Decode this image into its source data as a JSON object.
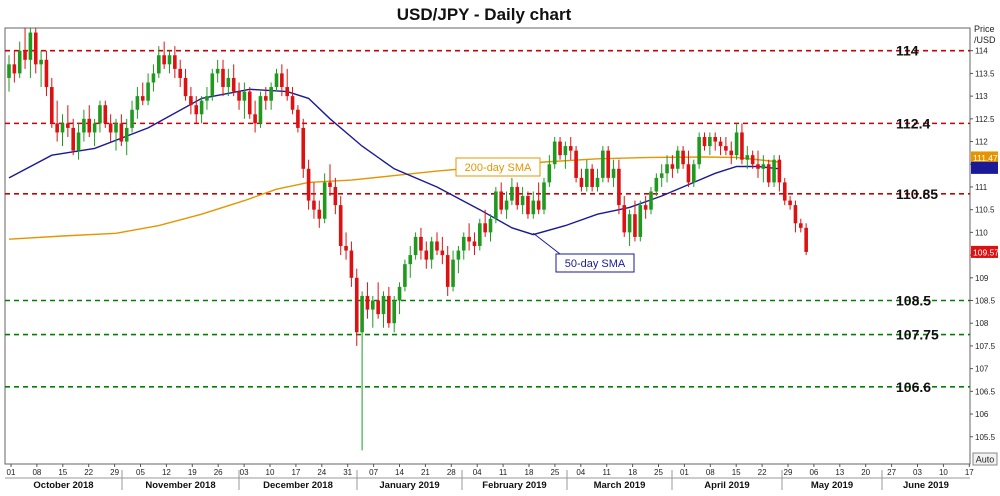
{
  "chart_data": {
    "type": "candlestick",
    "title": "USD/JPY - Daily chart",
    "price_axis_label": [
      "Price",
      "/USD"
    ],
    "ylim": [
      104.9,
      114.5
    ],
    "y_ticks": [
      "105.5",
      "106",
      "106.5",
      "107",
      "107.5",
      "108",
      "108.5",
      "109",
      "109.5",
      "110",
      "110.5",
      "111",
      "111.5",
      "112",
      "112.5",
      "113",
      "113.5",
      "114"
    ],
    "x_day_ticks": [
      "01",
      "08",
      "15",
      "22",
      "29",
      "05",
      "12",
      "19",
      "26",
      "03",
      "10",
      "17",
      "24",
      "31",
      "07",
      "14",
      "21",
      "28",
      "04",
      "11",
      "18",
      "25",
      "04",
      "11",
      "18",
      "25",
      "01",
      "08",
      "15",
      "22",
      "29",
      "06",
      "13",
      "20",
      "27",
      "03",
      "10",
      "17"
    ],
    "x_month_labels": [
      "October 2018",
      "November 2018",
      "December 2018",
      "January 2019",
      "February 2019",
      "March 2019",
      "April 2019",
      "May 2019",
      "June 2019"
    ],
    "auto_label": "Auto",
    "levels": [
      {
        "value": 114,
        "label": "114",
        "color": "#cc0000"
      },
      {
        "value": 112.4,
        "label": "112.4",
        "color": "#cc0000"
      },
      {
        "value": 110.85,
        "label": "110.85",
        "color": "#cc0000"
      },
      {
        "value": 108.5,
        "label": "108.5",
        "color": "#008000"
      },
      {
        "value": 107.75,
        "label": "107.75",
        "color": "#008000"
      },
      {
        "value": 106.6,
        "label": "106.6",
        "color": "#008000"
      }
    ],
    "sma_labels": [
      {
        "text": "200-day SMA",
        "color": "#e69500"
      },
      {
        "text": "50-day SMA",
        "color": "#1a1a99"
      }
    ],
    "price_badges": [
      {
        "text": "111.47",
        "bg": "#e69500"
      },
      {
        "text": "",
        "bg": "#1a1a99"
      },
      {
        "text": "109.57",
        "bg": "#dd1111"
      }
    ],
    "candles": [
      {
        "o": 113.4,
        "h": 113.9,
        "l": 113.1,
        "c": 113.7
      },
      {
        "o": 113.7,
        "h": 114.0,
        "l": 113.3,
        "c": 113.5
      },
      {
        "o": 113.5,
        "h": 114.2,
        "l": 113.4,
        "c": 114.0
      },
      {
        "o": 114.0,
        "h": 114.5,
        "l": 113.6,
        "c": 113.8
      },
      {
        "o": 113.8,
        "h": 114.5,
        "l": 113.4,
        "c": 114.4
      },
      {
        "o": 114.4,
        "h": 114.5,
        "l": 113.5,
        "c": 113.7
      },
      {
        "o": 113.7,
        "h": 114.0,
        "l": 113.2,
        "c": 113.8
      },
      {
        "o": 113.8,
        "h": 114.0,
        "l": 113.0,
        "c": 113.2
      },
      {
        "o": 113.2,
        "h": 113.4,
        "l": 112.3,
        "c": 112.4
      },
      {
        "o": 112.4,
        "h": 112.9,
        "l": 112.0,
        "c": 112.2
      },
      {
        "o": 112.2,
        "h": 112.6,
        "l": 111.9,
        "c": 112.4
      },
      {
        "o": 112.4,
        "h": 112.8,
        "l": 112.1,
        "c": 112.3
      },
      {
        "o": 112.3,
        "h": 112.5,
        "l": 111.7,
        "c": 111.8
      },
      {
        "o": 111.8,
        "h": 112.4,
        "l": 111.6,
        "c": 112.2
      },
      {
        "o": 112.2,
        "h": 112.7,
        "l": 112.0,
        "c": 112.5
      },
      {
        "o": 112.5,
        "h": 112.8,
        "l": 112.1,
        "c": 112.2
      },
      {
        "o": 112.2,
        "h": 112.5,
        "l": 111.9,
        "c": 112.4
      },
      {
        "o": 112.4,
        "h": 112.9,
        "l": 112.2,
        "c": 112.8
      },
      {
        "o": 112.8,
        "h": 112.9,
        "l": 112.3,
        "c": 112.4
      },
      {
        "o": 112.4,
        "h": 112.6,
        "l": 112.0,
        "c": 112.2
      },
      {
        "o": 112.2,
        "h": 112.5,
        "l": 111.8,
        "c": 112.4
      },
      {
        "o": 112.4,
        "h": 112.6,
        "l": 111.9,
        "c": 112.0
      },
      {
        "o": 112.0,
        "h": 112.5,
        "l": 111.7,
        "c": 112.3
      },
      {
        "o": 112.3,
        "h": 112.9,
        "l": 112.2,
        "c": 112.7
      },
      {
        "o": 112.7,
        "h": 113.2,
        "l": 112.5,
        "c": 113.0
      },
      {
        "o": 113.0,
        "h": 113.3,
        "l": 112.8,
        "c": 112.9
      },
      {
        "o": 112.9,
        "h": 113.5,
        "l": 112.8,
        "c": 113.3
      },
      {
        "o": 113.3,
        "h": 113.7,
        "l": 113.1,
        "c": 113.5
      },
      {
        "o": 113.5,
        "h": 114.1,
        "l": 113.4,
        "c": 113.9
      },
      {
        "o": 113.9,
        "h": 114.2,
        "l": 113.6,
        "c": 113.7
      },
      {
        "o": 113.7,
        "h": 114.0,
        "l": 113.5,
        "c": 113.9
      },
      {
        "o": 113.9,
        "h": 114.1,
        "l": 113.4,
        "c": 113.6
      },
      {
        "o": 113.6,
        "h": 113.8,
        "l": 113.2,
        "c": 113.4
      },
      {
        "o": 113.4,
        "h": 113.6,
        "l": 112.9,
        "c": 113.0
      },
      {
        "o": 113.0,
        "h": 113.2,
        "l": 112.6,
        "c": 112.8
      },
      {
        "o": 112.8,
        "h": 113.0,
        "l": 112.4,
        "c": 112.6
      },
      {
        "o": 112.6,
        "h": 113.0,
        "l": 112.4,
        "c": 112.9
      },
      {
        "o": 112.9,
        "h": 113.2,
        "l": 112.7,
        "c": 113.0
      },
      {
        "o": 113.0,
        "h": 113.6,
        "l": 112.9,
        "c": 113.5
      },
      {
        "o": 113.5,
        "h": 113.8,
        "l": 113.3,
        "c": 113.6
      },
      {
        "o": 113.6,
        "h": 113.8,
        "l": 113.0,
        "c": 113.2
      },
      {
        "o": 113.2,
        "h": 113.6,
        "l": 113.0,
        "c": 113.4
      },
      {
        "o": 113.4,
        "h": 113.7,
        "l": 113.0,
        "c": 113.1
      },
      {
        "o": 113.1,
        "h": 113.3,
        "l": 112.7,
        "c": 112.9
      },
      {
        "o": 112.9,
        "h": 113.3,
        "l": 112.5,
        "c": 113.1
      },
      {
        "o": 113.1,
        "h": 113.2,
        "l": 112.5,
        "c": 112.6
      },
      {
        "o": 112.6,
        "h": 112.9,
        "l": 112.2,
        "c": 112.4
      },
      {
        "o": 112.4,
        "h": 113.1,
        "l": 112.3,
        "c": 113.0
      },
      {
        "o": 113.0,
        "h": 113.2,
        "l": 112.7,
        "c": 112.9
      },
      {
        "o": 112.9,
        "h": 113.3,
        "l": 112.7,
        "c": 113.2
      },
      {
        "o": 113.2,
        "h": 113.6,
        "l": 113.1,
        "c": 113.5
      },
      {
        "o": 113.5,
        "h": 113.7,
        "l": 113.0,
        "c": 113.2
      },
      {
        "o": 113.2,
        "h": 113.6,
        "l": 112.9,
        "c": 113.0
      },
      {
        "o": 113.0,
        "h": 113.2,
        "l": 112.6,
        "c": 112.7
      },
      {
        "o": 112.7,
        "h": 112.8,
        "l": 112.2,
        "c": 112.3
      },
      {
        "o": 112.3,
        "h": 112.5,
        "l": 111.2,
        "c": 111.4
      },
      {
        "o": 111.4,
        "h": 111.6,
        "l": 110.5,
        "c": 110.7
      },
      {
        "o": 110.7,
        "h": 111.1,
        "l": 110.3,
        "c": 110.5
      },
      {
        "o": 110.5,
        "h": 110.7,
        "l": 110.1,
        "c": 110.3
      },
      {
        "o": 110.3,
        "h": 111.3,
        "l": 110.2,
        "c": 111.1
      },
      {
        "o": 111.1,
        "h": 111.5,
        "l": 110.8,
        "c": 111.0
      },
      {
        "o": 111.0,
        "h": 111.2,
        "l": 110.4,
        "c": 110.6
      },
      {
        "o": 110.6,
        "h": 110.8,
        "l": 109.5,
        "c": 109.7
      },
      {
        "o": 109.7,
        "h": 110.0,
        "l": 109.4,
        "c": 109.6
      },
      {
        "o": 109.6,
        "h": 109.8,
        "l": 108.8,
        "c": 109.0
      },
      {
        "o": 109.0,
        "h": 109.2,
        "l": 107.5,
        "c": 107.8
      },
      {
        "o": 107.8,
        "h": 108.7,
        "l": 105.2,
        "c": 108.6
      },
      {
        "o": 108.6,
        "h": 108.9,
        "l": 108.1,
        "c": 108.3
      },
      {
        "o": 108.3,
        "h": 108.6,
        "l": 107.9,
        "c": 108.5
      },
      {
        "o": 108.5,
        "h": 108.9,
        "l": 108.1,
        "c": 108.2
      },
      {
        "o": 108.2,
        "h": 108.7,
        "l": 107.9,
        "c": 108.6
      },
      {
        "o": 108.6,
        "h": 108.8,
        "l": 107.9,
        "c": 108.0
      },
      {
        "o": 108.0,
        "h": 108.6,
        "l": 107.8,
        "c": 108.5
      },
      {
        "o": 108.5,
        "h": 108.9,
        "l": 108.2,
        "c": 108.8
      },
      {
        "o": 108.8,
        "h": 109.4,
        "l": 108.7,
        "c": 109.3
      },
      {
        "o": 109.3,
        "h": 109.7,
        "l": 109.0,
        "c": 109.5
      },
      {
        "o": 109.5,
        "h": 110.0,
        "l": 109.4,
        "c": 109.9
      },
      {
        "o": 109.9,
        "h": 110.1,
        "l": 109.4,
        "c": 109.6
      },
      {
        "o": 109.6,
        "h": 109.8,
        "l": 109.2,
        "c": 109.4
      },
      {
        "o": 109.4,
        "h": 109.9,
        "l": 109.2,
        "c": 109.8
      },
      {
        "o": 109.8,
        "h": 110.0,
        "l": 109.5,
        "c": 109.6
      },
      {
        "o": 109.6,
        "h": 109.9,
        "l": 109.3,
        "c": 109.5
      },
      {
        "o": 109.5,
        "h": 109.7,
        "l": 108.6,
        "c": 108.8
      },
      {
        "o": 108.8,
        "h": 109.6,
        "l": 108.7,
        "c": 109.4
      },
      {
        "o": 109.4,
        "h": 109.7,
        "l": 109.1,
        "c": 109.6
      },
      {
        "o": 109.6,
        "h": 110.0,
        "l": 109.4,
        "c": 109.9
      },
      {
        "o": 109.9,
        "h": 110.2,
        "l": 109.6,
        "c": 109.8
      },
      {
        "o": 109.8,
        "h": 110.0,
        "l": 109.5,
        "c": 109.7
      },
      {
        "o": 109.7,
        "h": 110.3,
        "l": 109.6,
        "c": 110.2
      },
      {
        "o": 110.2,
        "h": 110.5,
        "l": 109.9,
        "c": 110.0
      },
      {
        "o": 110.0,
        "h": 110.4,
        "l": 109.8,
        "c": 110.3
      },
      {
        "o": 110.3,
        "h": 111.0,
        "l": 110.2,
        "c": 110.9
      },
      {
        "o": 110.9,
        "h": 111.1,
        "l": 110.4,
        "c": 110.5
      },
      {
        "o": 110.5,
        "h": 110.9,
        "l": 110.3,
        "c": 110.7
      },
      {
        "o": 110.7,
        "h": 111.2,
        "l": 110.6,
        "c": 111.0
      },
      {
        "o": 111.0,
        "h": 111.1,
        "l": 110.5,
        "c": 110.6
      },
      {
        "o": 110.6,
        "h": 111.0,
        "l": 110.4,
        "c": 110.8
      },
      {
        "o": 110.8,
        "h": 110.9,
        "l": 110.3,
        "c": 110.4
      },
      {
        "o": 110.4,
        "h": 110.9,
        "l": 110.3,
        "c": 110.7
      },
      {
        "o": 110.7,
        "h": 111.1,
        "l": 110.4,
        "c": 110.5
      },
      {
        "o": 110.5,
        "h": 111.2,
        "l": 110.4,
        "c": 111.1
      },
      {
        "o": 111.1,
        "h": 111.7,
        "l": 111.0,
        "c": 111.5
      },
      {
        "o": 111.5,
        "h": 112.1,
        "l": 111.4,
        "c": 112.0
      },
      {
        "o": 112.0,
        "h": 112.1,
        "l": 111.6,
        "c": 111.7
      },
      {
        "o": 111.7,
        "h": 112.0,
        "l": 111.4,
        "c": 111.9
      },
      {
        "o": 111.9,
        "h": 112.1,
        "l": 111.6,
        "c": 111.8
      },
      {
        "o": 111.8,
        "h": 111.9,
        "l": 111.1,
        "c": 111.2
      },
      {
        "o": 111.2,
        "h": 111.4,
        "l": 110.9,
        "c": 111.0
      },
      {
        "o": 111.0,
        "h": 111.6,
        "l": 110.9,
        "c": 111.4
      },
      {
        "o": 111.4,
        "h": 111.5,
        "l": 110.9,
        "c": 111.0
      },
      {
        "o": 111.0,
        "h": 111.4,
        "l": 110.9,
        "c": 111.2
      },
      {
        "o": 111.2,
        "h": 111.9,
        "l": 111.1,
        "c": 111.8
      },
      {
        "o": 111.8,
        "h": 111.9,
        "l": 111.1,
        "c": 111.2
      },
      {
        "o": 111.2,
        "h": 111.6,
        "l": 111.0,
        "c": 111.4
      },
      {
        "o": 111.4,
        "h": 111.6,
        "l": 110.4,
        "c": 110.6
      },
      {
        "o": 110.6,
        "h": 110.8,
        "l": 109.9,
        "c": 110.0
      },
      {
        "o": 110.0,
        "h": 110.5,
        "l": 109.7,
        "c": 110.4
      },
      {
        "o": 110.4,
        "h": 110.7,
        "l": 109.8,
        "c": 109.9
      },
      {
        "o": 109.9,
        "h": 110.7,
        "l": 109.8,
        "c": 110.6
      },
      {
        "o": 110.6,
        "h": 110.8,
        "l": 110.3,
        "c": 110.5
      },
      {
        "o": 110.5,
        "h": 111.0,
        "l": 110.4,
        "c": 110.9
      },
      {
        "o": 110.9,
        "h": 111.3,
        "l": 110.8,
        "c": 111.2
      },
      {
        "o": 111.2,
        "h": 111.5,
        "l": 111.0,
        "c": 111.3
      },
      {
        "o": 111.3,
        "h": 111.7,
        "l": 111.1,
        "c": 111.5
      },
      {
        "o": 111.5,
        "h": 111.7,
        "l": 111.2,
        "c": 111.4
      },
      {
        "o": 111.4,
        "h": 111.9,
        "l": 111.3,
        "c": 111.8
      },
      {
        "o": 111.8,
        "h": 111.9,
        "l": 111.4,
        "c": 111.5
      },
      {
        "o": 111.5,
        "h": 111.8,
        "l": 111.0,
        "c": 111.1
      },
      {
        "o": 111.1,
        "h": 111.6,
        "l": 111.0,
        "c": 111.5
      },
      {
        "o": 111.5,
        "h": 112.2,
        "l": 111.4,
        "c": 112.1
      },
      {
        "o": 112.1,
        "h": 112.2,
        "l": 111.8,
        "c": 111.9
      },
      {
        "o": 111.9,
        "h": 112.2,
        "l": 111.7,
        "c": 112.1
      },
      {
        "o": 112.1,
        "h": 112.2,
        "l": 111.8,
        "c": 112.0
      },
      {
        "o": 112.0,
        "h": 112.1,
        "l": 111.7,
        "c": 111.9
      },
      {
        "o": 111.9,
        "h": 112.1,
        "l": 111.7,
        "c": 111.8
      },
      {
        "o": 111.8,
        "h": 112.0,
        "l": 111.5,
        "c": 111.7
      },
      {
        "o": 111.7,
        "h": 112.4,
        "l": 111.6,
        "c": 112.2
      },
      {
        "o": 112.2,
        "h": 112.4,
        "l": 111.5,
        "c": 111.6
      },
      {
        "o": 111.6,
        "h": 111.9,
        "l": 111.4,
        "c": 111.7
      },
      {
        "o": 111.7,
        "h": 111.8,
        "l": 111.4,
        "c": 111.5
      },
      {
        "o": 111.5,
        "h": 111.8,
        "l": 111.2,
        "c": 111.4
      },
      {
        "o": 111.4,
        "h": 111.7,
        "l": 111.1,
        "c": 111.5
      },
      {
        "o": 111.5,
        "h": 111.6,
        "l": 111.0,
        "c": 111.1
      },
      {
        "o": 111.1,
        "h": 111.7,
        "l": 111.0,
        "c": 111.6
      },
      {
        "o": 111.6,
        "h": 111.7,
        "l": 110.9,
        "c": 111.1
      },
      {
        "o": 111.1,
        "h": 111.2,
        "l": 110.6,
        "c": 110.7
      },
      {
        "o": 110.7,
        "h": 110.8,
        "l": 110.5,
        "c": 110.6
      },
      {
        "o": 110.6,
        "h": 110.7,
        "l": 110.0,
        "c": 110.2
      },
      {
        "o": 110.2,
        "h": 110.3,
        "l": 110.0,
        "c": 110.1
      },
      {
        "o": 110.1,
        "h": 110.2,
        "l": 109.5,
        "c": 109.57
      }
    ],
    "sma50": [
      [
        0,
        111.2
      ],
      [
        8,
        111.7
      ],
      [
        16,
        111.85
      ],
      [
        26,
        112.3
      ],
      [
        36,
        112.95
      ],
      [
        45,
        113.15
      ],
      [
        52,
        113.1
      ],
      [
        56,
        112.95
      ],
      [
        60,
        112.5
      ],
      [
        66,
        111.9
      ],
      [
        72,
        111.4
      ],
      [
        80,
        111.0
      ],
      [
        88,
        110.5
      ],
      [
        94,
        110.1
      ],
      [
        98,
        109.95
      ],
      [
        104,
        110.15
      ],
      [
        110,
        110.4
      ],
      [
        116,
        110.55
      ],
      [
        122,
        110.8
      ],
      [
        128,
        111.1
      ],
      [
        132,
        111.3
      ],
      [
        136,
        111.45
      ],
      [
        140,
        111.45
      ],
      [
        144,
        111.4
      ]
    ],
    "sma200": [
      [
        0,
        109.85
      ],
      [
        10,
        109.92
      ],
      [
        20,
        109.98
      ],
      [
        28,
        110.15
      ],
      [
        36,
        110.4
      ],
      [
        44,
        110.7
      ],
      [
        50,
        110.95
      ],
      [
        56,
        111.1
      ],
      [
        64,
        111.15
      ],
      [
        72,
        111.25
      ],
      [
        80,
        111.35
      ],
      [
        90,
        111.45
      ],
      [
        100,
        111.55
      ],
      [
        110,
        111.62
      ],
      [
        120,
        111.65
      ],
      [
        130,
        111.66
      ],
      [
        136,
        111.65
      ],
      [
        144,
        111.55
      ]
    ]
  }
}
